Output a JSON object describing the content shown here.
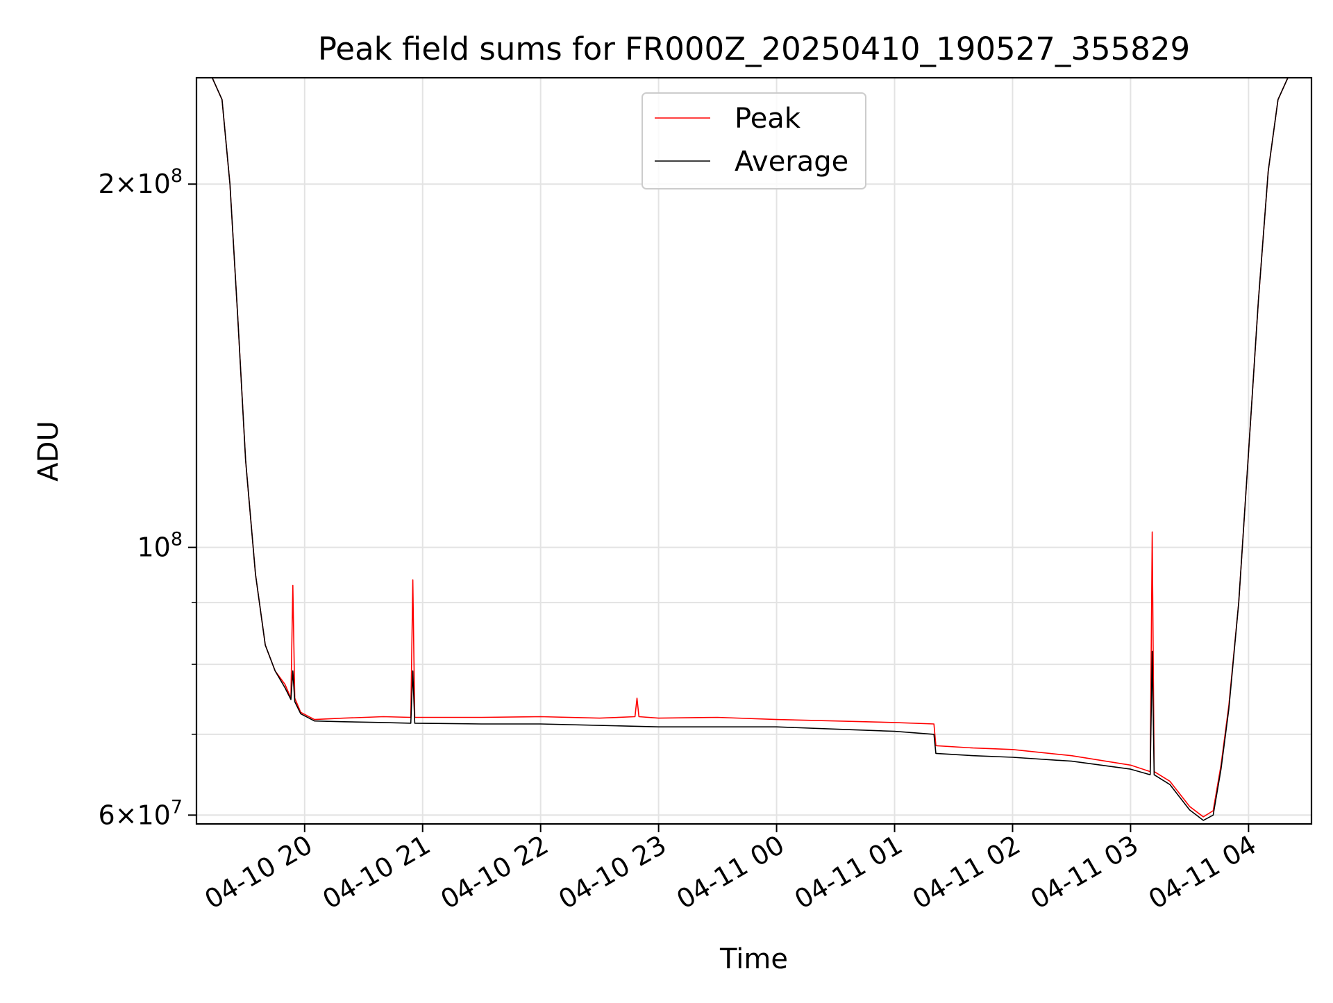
{
  "chart_data": {
    "type": "line",
    "title": "Peak field sums for FR000Z_20250410_190527_355829",
    "xlabel": "Time",
    "ylabel": "ADU",
    "yscale": "log",
    "xlim": [
      "2025-04-10 19:05",
      "2025-04-11 04:32"
    ],
    "ylim": [
      59000000,
      245000000
    ],
    "grid": true,
    "legend_location": "upper center",
    "x_tick_labels": [
      "04-10 20",
      "04-10 21",
      "04-10 22",
      "04-10 23",
      "04-11 00",
      "04-11 01",
      "04-11 02",
      "04-11 03",
      "04-11 04"
    ],
    "x_ticks": [
      "2025-04-10 20:00",
      "2025-04-10 21:00",
      "2025-04-10 22:00",
      "2025-04-10 23:00",
      "2025-04-11 00:00",
      "2025-04-11 01:00",
      "2025-04-11 02:00",
      "2025-04-11 03:00",
      "2025-04-11 04:00"
    ],
    "y_ticks": [
      {
        "value": 60000000,
        "mantissa": "6",
        "exponent": "7"
      },
      {
        "value": 100000000,
        "mantissa": "",
        "exponent": "8"
      },
      {
        "value": 200000000,
        "mantissa": "2",
        "exponent": "8"
      }
    ],
    "y_minor_ticks": [
      70000000,
      80000000,
      90000000
    ],
    "series": [
      {
        "name": "Peak",
        "color": "#ff0000",
        "x": [
          "2025-04-10 19:05",
          "2025-04-10 19:13",
          "2025-04-10 19:18",
          "2025-04-10 19:22",
          "2025-04-10 19:26",
          "2025-04-10 19:30",
          "2025-04-10 19:35",
          "2025-04-10 19:40",
          "2025-04-10 19:45",
          "2025-04-10 19:50",
          "2025-04-10 19:53",
          "2025-04-10 19:54",
          "2025-04-10 19:55",
          "2025-04-10 19:58",
          "2025-04-10 20:05",
          "2025-04-10 20:20",
          "2025-04-10 20:40",
          "2025-04-10 20:54",
          "2025-04-10 20:55",
          "2025-04-10 20:56",
          "2025-04-10 21:30",
          "2025-04-10 22:00",
          "2025-04-10 22:30",
          "2025-04-10 22:48",
          "2025-04-10 22:49",
          "2025-04-10 22:50",
          "2025-04-10 23:00",
          "2025-04-10 23:30",
          "2025-04-11 00:00",
          "2025-04-11 00:30",
          "2025-04-11 01:00",
          "2025-04-11 01:20",
          "2025-04-11 01:21",
          "2025-04-11 01:40",
          "2025-04-11 02:00",
          "2025-04-11 02:30",
          "2025-04-11 03:00",
          "2025-04-11 03:10",
          "2025-04-11 03:11",
          "2025-04-11 03:12",
          "2025-04-11 03:20",
          "2025-04-11 03:30",
          "2025-04-11 03:37",
          "2025-04-11 03:42",
          "2025-04-11 03:46",
          "2025-04-11 03:50",
          "2025-04-11 03:55",
          "2025-04-11 04:00",
          "2025-04-11 04:05",
          "2025-04-11 04:10",
          "2025-04-11 04:15",
          "2025-04-11 04:20",
          "2025-04-11 04:25",
          "2025-04-11 04:32"
        ],
        "values": [
          245000000,
          245000000,
          235000000,
          200000000,
          155000000,
          118000000,
          95000000,
          83000000,
          79000000,
          77000000,
          75000000,
          93000000,
          75000000,
          73000000,
          72000000,
          72200000,
          72400000,
          72300000,
          94000000,
          72300000,
          72300000,
          72400000,
          72200000,
          72400000,
          75000000,
          72400000,
          72200000,
          72300000,
          72000000,
          71800000,
          71600000,
          71400000,
          68500000,
          68200000,
          68000000,
          67200000,
          66000000,
          65200000,
          103000000,
          65200000,
          64000000,
          61000000,
          59800000,
          60500000,
          66000000,
          74000000,
          90000000,
          120000000,
          160000000,
          205000000,
          235000000,
          245000000,
          245000000,
          245000000
        ]
      },
      {
        "name": "Average",
        "color": "#000000",
        "x": [
          "2025-04-10 19:05",
          "2025-04-10 19:13",
          "2025-04-10 19:18",
          "2025-04-10 19:22",
          "2025-04-10 19:26",
          "2025-04-10 19:30",
          "2025-04-10 19:35",
          "2025-04-10 19:40",
          "2025-04-10 19:45",
          "2025-04-10 19:50",
          "2025-04-10 19:53",
          "2025-04-10 19:54",
          "2025-04-10 19:55",
          "2025-04-10 19:58",
          "2025-04-10 20:05",
          "2025-04-10 20:20",
          "2025-04-10 20:40",
          "2025-04-10 20:54",
          "2025-04-10 20:55",
          "2025-04-10 20:56",
          "2025-04-10 21:30",
          "2025-04-10 22:00",
          "2025-04-10 22:30",
          "2025-04-10 23:00",
          "2025-04-10 23:30",
          "2025-04-11 00:00",
          "2025-04-11 00:30",
          "2025-04-11 01:00",
          "2025-04-11 01:20",
          "2025-04-11 01:21",
          "2025-04-11 01:40",
          "2025-04-11 02:00",
          "2025-04-11 02:30",
          "2025-04-11 03:00",
          "2025-04-11 03:10",
          "2025-04-11 03:11",
          "2025-04-11 03:12",
          "2025-04-11 03:20",
          "2025-04-11 03:30",
          "2025-04-11 03:37",
          "2025-04-11 03:42",
          "2025-04-11 03:46",
          "2025-04-11 03:50",
          "2025-04-11 03:55",
          "2025-04-11 04:00",
          "2025-04-11 04:05",
          "2025-04-11 04:10",
          "2025-04-11 04:15",
          "2025-04-11 04:20",
          "2025-04-11 04:25",
          "2025-04-11 04:32"
        ],
        "values": [
          245000000,
          245000000,
          235000000,
          200000000,
          155000000,
          118000000,
          95000000,
          83000000,
          79000000,
          76500000,
          74800000,
          79000000,
          74500000,
          72800000,
          71800000,
          71700000,
          71600000,
          71500000,
          79000000,
          71500000,
          71400000,
          71400000,
          71200000,
          71000000,
          71000000,
          71000000,
          70700000,
          70400000,
          70000000,
          67500000,
          67200000,
          67000000,
          66500000,
          65500000,
          64800000,
          82000000,
          64800000,
          63600000,
          60600000,
          59400000,
          60000000,
          65500000,
          73500000,
          90000000,
          120000000,
          160000000,
          205000000,
          235000000,
          245000000,
          245000000,
          245000000
        ]
      }
    ]
  }
}
